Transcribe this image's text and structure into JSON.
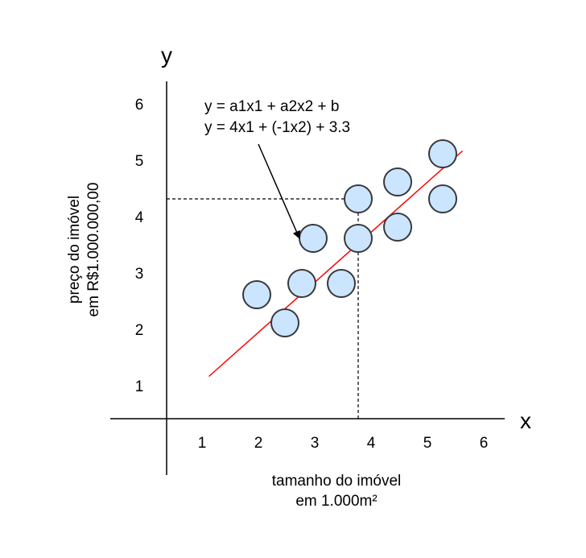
{
  "chart_data": {
    "type": "scatter",
    "xlabel": [
      "tamanho do imóvel",
      "em 1.000m²"
    ],
    "ylabel": [
      "preço do imóvel",
      "em R$1.000.000,00"
    ],
    "x_axis_letter": "x",
    "y_axis_letter": "y",
    "xlim": [
      0,
      6
    ],
    "ylim": [
      0,
      6
    ],
    "x_ticks": [
      "1",
      "2",
      "3",
      "4",
      "5",
      "6"
    ],
    "y_ticks": [
      "1",
      "2",
      "3",
      "4",
      "5",
      "6"
    ],
    "points": [
      {
        "x": 1.6,
        "y": 2.2
      },
      {
        "x": 2.1,
        "y": 1.7
      },
      {
        "x": 2.4,
        "y": 2.4
      },
      {
        "x": 2.6,
        "y": 3.2
      },
      {
        "x": 3.1,
        "y": 2.4
      },
      {
        "x": 3.4,
        "y": 3.9
      },
      {
        "x": 3.4,
        "y": 3.2
      },
      {
        "x": 4.1,
        "y": 4.2
      },
      {
        "x": 4.1,
        "y": 3.4
      },
      {
        "x": 4.9,
        "y": 4.7
      },
      {
        "x": 4.9,
        "y": 3.9
      }
    ],
    "regression_line": {
      "x1": 0.75,
      "y1": 0.75,
      "x2": 5.25,
      "y2": 4.75
    },
    "highlight": {
      "x": 3.4,
      "y": 3.9
    },
    "annotations": [
      "y = a1x1 + a2x2 + b",
      "y = 4x1 + (-1x2) + 3.3"
    ],
    "grid": false,
    "legend": "none",
    "colors": {
      "point_fill": "#cce5ff",
      "point_stroke": "#36393d",
      "regression": "#ff0000",
      "axis": "#000000"
    }
  }
}
